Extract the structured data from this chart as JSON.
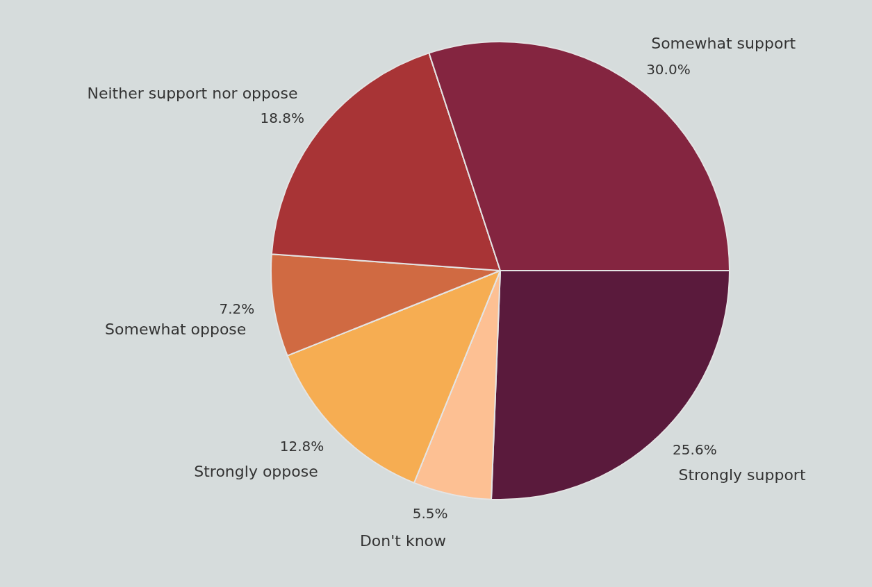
{
  "chart_data": {
    "type": "pie",
    "categories": [
      "Strongly support",
      "Don't know",
      "Strongly oppose",
      "Somewhat oppose",
      "Neither support nor oppose",
      "Somewhat support"
    ],
    "values": [
      25.6,
      5.5,
      12.8,
      7.2,
      18.8,
      30.0
    ],
    "value_labels": [
      "25.6%",
      "5.5%",
      "12.8%",
      "7.2%",
      "18.8%",
      "30.0%"
    ],
    "colors": [
      "#5a1a3c",
      "#fdc093",
      "#f6ad52",
      "#d06a42",
      "#a83436",
      "#842540"
    ]
  }
}
